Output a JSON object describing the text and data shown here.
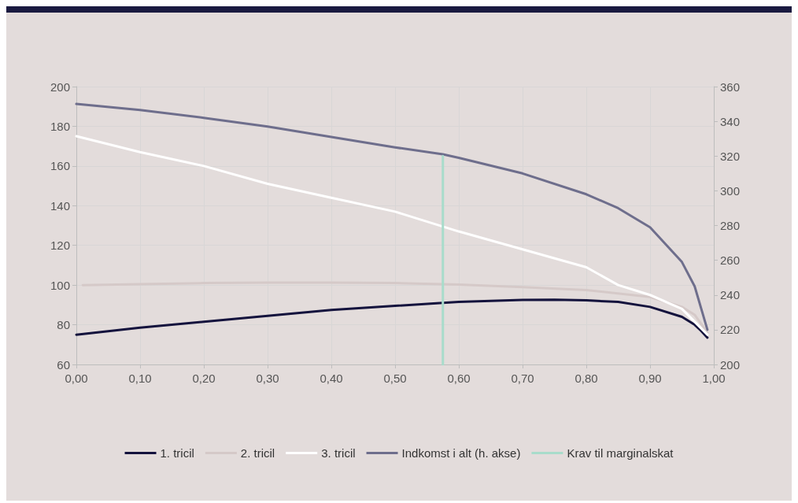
{
  "chart_data": {
    "type": "line",
    "xlim": [
      0,
      1
    ],
    "xticks": [
      {
        "value": 0,
        "label": "0,00"
      },
      {
        "value": 0.1,
        "label": "0,10"
      },
      {
        "value": 0.2,
        "label": "0,20"
      },
      {
        "value": 0.3,
        "label": "0,30"
      },
      {
        "value": 0.4,
        "label": "0,40"
      },
      {
        "value": 0.5,
        "label": "0,50"
      },
      {
        "value": 0.6,
        "label": "0,60"
      },
      {
        "value": 0.7,
        "label": "0,70"
      },
      {
        "value": 0.8,
        "label": "0,80"
      },
      {
        "value": 0.9,
        "label": "0,90"
      },
      {
        "value": 1,
        "label": "1,00"
      }
    ],
    "ylim": [
      60,
      200
    ],
    "yticks": [
      60,
      80,
      100,
      120,
      140,
      160,
      180,
      200
    ],
    "y2lim": [
      200,
      360
    ],
    "y2ticks": [
      200,
      220,
      240,
      260,
      280,
      300,
      320,
      340,
      360
    ],
    "grid": true,
    "legend": "bottom",
    "marker": "none",
    "line_style": "solid",
    "series": [
      {
        "name": "1. tricil",
        "color": "#14133d",
        "x": [
          0,
          0.1,
          0.2,
          0.3,
          0.4,
          0.5,
          0.575,
          0.6,
          0.7,
          0.75,
          0.8,
          0.85,
          0.9,
          0.95,
          0.97,
          0.98,
          0.99
        ],
        "values": [
          75,
          78.5,
          81.5,
          84.5,
          87.5,
          89.5,
          91,
          91.5,
          92.5,
          92.6,
          92.3,
          91.5,
          89,
          84,
          80,
          77,
          73.5
        ]
      },
      {
        "name": "2. tricil",
        "color": "#d5c9c8",
        "x": [
          0.01,
          0.1,
          0.2,
          0.3,
          0.4,
          0.5,
          0.6,
          0.7,
          0.8,
          0.9,
          0.95,
          0.97,
          0.99
        ],
        "values": [
          100,
          100.5,
          101,
          101.2,
          101.2,
          101,
          100.3,
          99,
          97.5,
          94,
          89,
          85,
          76
        ]
      },
      {
        "name": "3. tricil",
        "color": "#ffffff",
        "x": [
          0,
          0.1,
          0.2,
          0.3,
          0.4,
          0.5,
          0.6,
          0.7,
          0.8,
          0.85,
          0.9,
          0.95,
          0.99
        ],
        "values": [
          175,
          167,
          160,
          151,
          144,
          137,
          127,
          118,
          109,
          100,
          95,
          88,
          75
        ]
      },
      {
        "name": "Indkomst i alt (h. akse)",
        "color": "#6e6e8c",
        "axis": "y2",
        "x": [
          0,
          0.1,
          0.2,
          0.3,
          0.4,
          0.5,
          0.575,
          0.6,
          0.7,
          0.8,
          0.85,
          0.9,
          0.95,
          0.97,
          0.99
        ],
        "values": [
          350,
          346.5,
          342,
          337,
          331,
          325,
          321,
          319,
          310,
          298,
          290,
          279,
          259,
          245,
          220
        ]
      },
      {
        "name": "Krav til marginalskat",
        "color": "#a8dccb",
        "x": [
          0.575,
          0.575
        ],
        "values": [
          60,
          165
        ]
      }
    ]
  }
}
